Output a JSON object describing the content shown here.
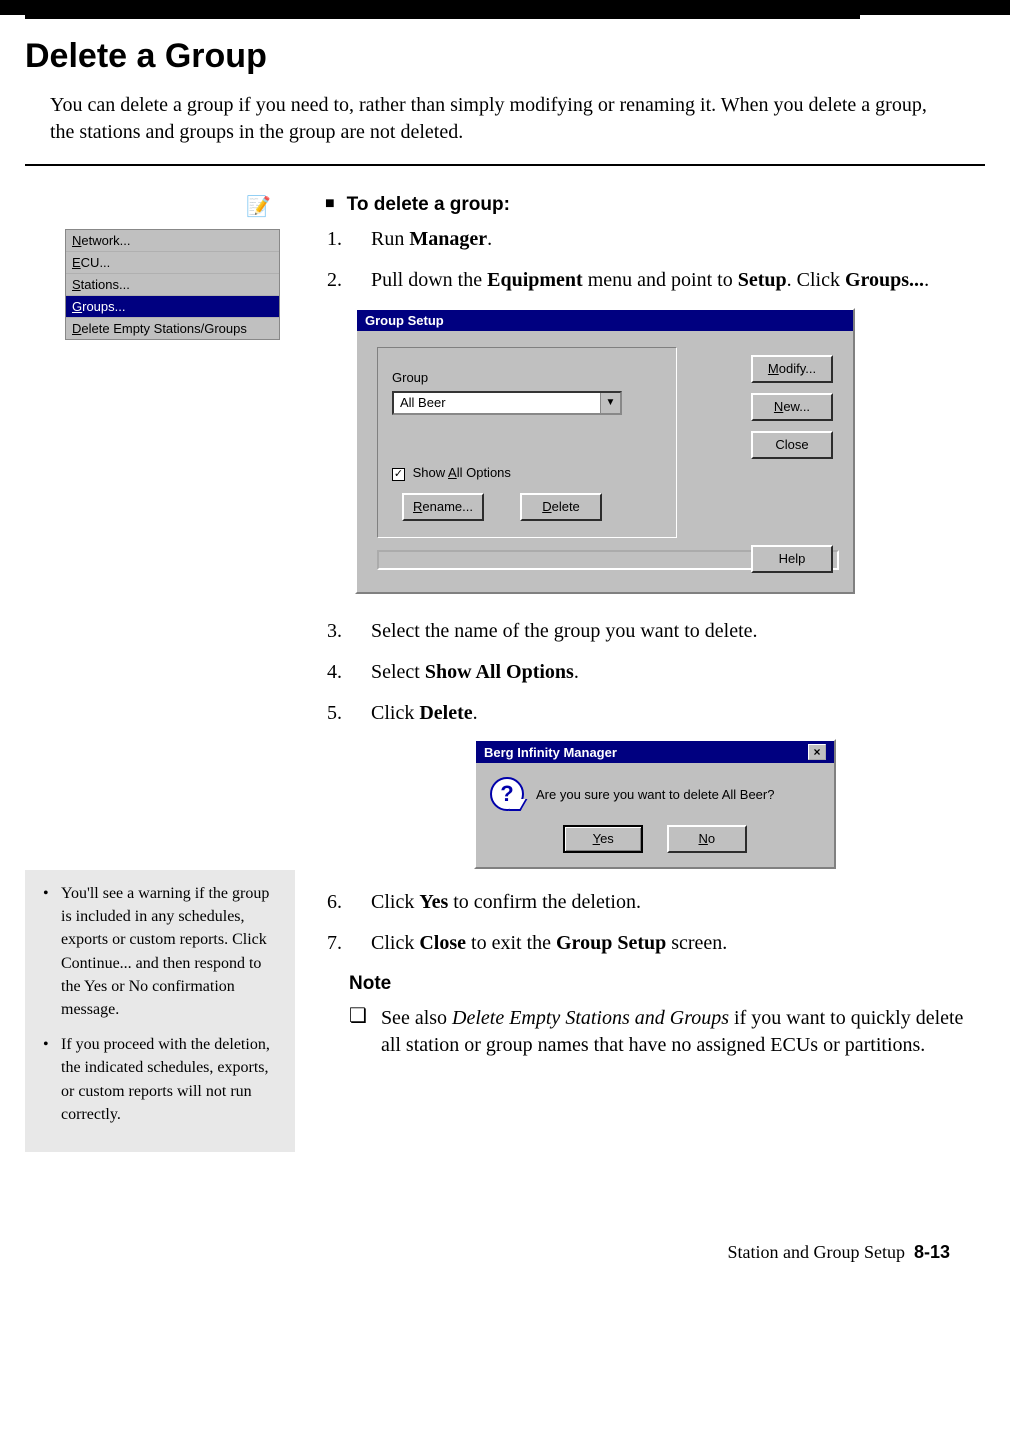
{
  "page": {
    "title": "Delete a Group",
    "intro": "You can delete a group if you need to, rather than simply modifying or renaming it. When you delete a group, the stations and groups in the group are not deleted.",
    "procedure_heading": "To delete a group:",
    "note_heading": "Note"
  },
  "menu": {
    "items": [
      {
        "pre": "",
        "u": "N",
        "post": "etwork..."
      },
      {
        "pre": "",
        "u": "E",
        "post": "CU..."
      },
      {
        "pre": "",
        "u": "S",
        "post": "tations..."
      },
      {
        "pre": "",
        "u": "G",
        "post": "roups..."
      },
      {
        "pre": "",
        "u": "D",
        "post": "elete Empty Stations/Groups"
      }
    ],
    "selected_index": 3
  },
  "steps": {
    "s1_pre": "Run ",
    "s1_b": "Manager",
    "s1_post": ".",
    "s2_pre": "Pull down the ",
    "s2_b1": "Equipment",
    "s2_mid": " menu and point to ",
    "s2_b2": "Setup",
    "s2_post1": ". Click ",
    "s2_b3": "Groups...",
    "s2_post2": ".",
    "s3": "Select the name of the group you want to delete.",
    "s4_pre": "Select ",
    "s4_b": "Show All Options",
    "s4_post": ".",
    "s5_pre": "Click ",
    "s5_b": "Delete",
    "s5_post": ".",
    "s6_pre": "Click ",
    "s6_b": "Yes",
    "s6_post": " to confirm the deletion.",
    "s7_pre": "Click ",
    "s7_b1": "Close",
    "s7_mid": " to exit the ",
    "s7_b2": "Group Setup",
    "s7_post": " screen."
  },
  "dlg_group": {
    "title": "Group Setup",
    "group_label": "Group",
    "group_value": "All Beer",
    "show_all_label_u": "A",
    "show_all_label_pre": "Show ",
    "show_all_label_post": "ll Options",
    "show_all_checked": "✓",
    "modify_u": "M",
    "modify_post": "odify...",
    "new_u": "N",
    "new_post": "ew...",
    "close": "Close",
    "help": "Help",
    "rename_u": "R",
    "rename_post": "ename...",
    "delete_u": "D",
    "delete_post": "elete"
  },
  "dlg_confirm": {
    "title": "Berg Infinity Manager",
    "msg": "Are you sure you want to delete All Beer?",
    "yes_u": "Y",
    "yes_post": "es",
    "no_u": "N",
    "no_post": "o"
  },
  "side_note": {
    "n1": "You'll see a warning if the group is included in any schedules, exports or custom reports. Click Continue... and then respond to the Yes or No confirmation message.",
    "n2": "If you proceed with the deletion, the indicated schedules, exports, or custom reports will not run correctly."
  },
  "note_item": {
    "pre": "See also ",
    "em": "Delete Empty Stations and Groups",
    "post": " if you want to quickly delete all station or group names that have no assigned ECUs or partitions."
  },
  "footer": {
    "section": "Station and Group Setup",
    "page": "8-13"
  },
  "colors": {
    "titlebar": "#000080",
    "win_face": "#c0c0c0",
    "side_note_bg": "#e8e8e8"
  }
}
